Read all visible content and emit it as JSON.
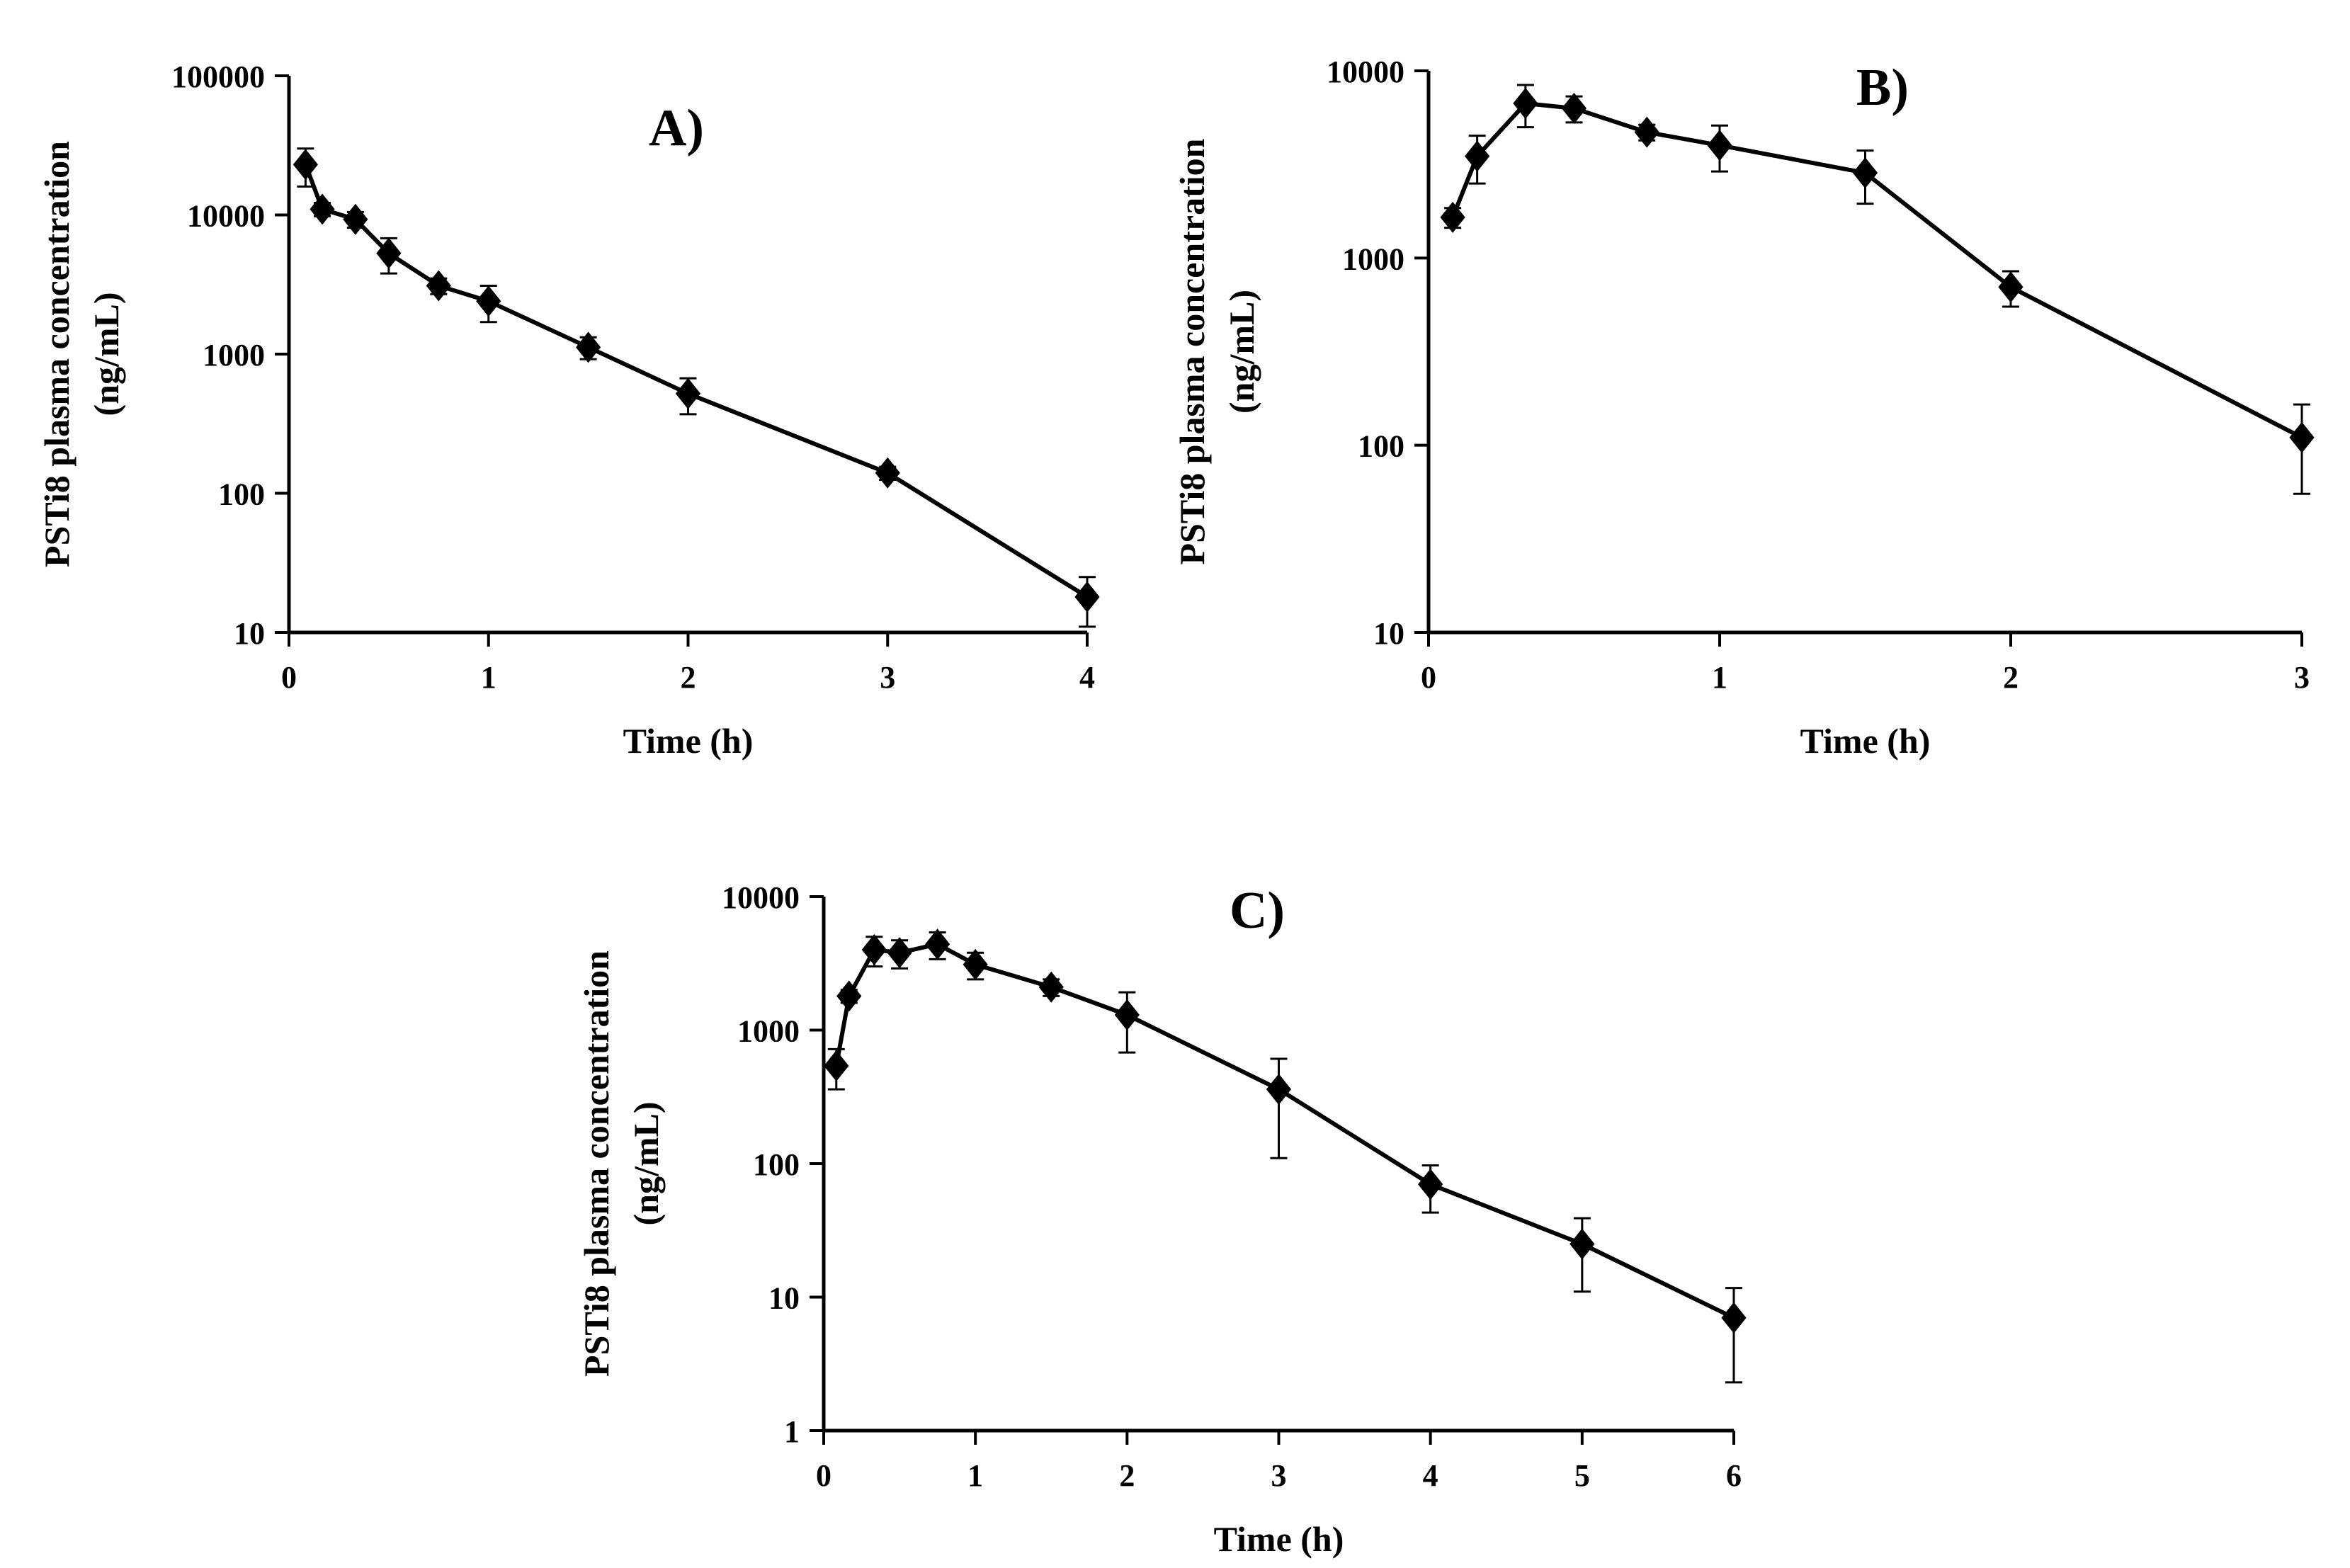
{
  "colors": {
    "line": "#000000",
    "background": "#ffffff"
  },
  "chart_data": [
    {
      "panel": "A",
      "type": "line",
      "title": "A)",
      "xlabel": "Time (h)",
      "ylabel": [
        "PSTi8 plasma concentration",
        "(ng/mL)"
      ],
      "yscale": "log",
      "xlim": [
        0,
        4
      ],
      "ylim": [
        10,
        100000
      ],
      "x_ticks": [
        0,
        1,
        2,
        3,
        4
      ],
      "y_ticks": [
        10,
        100,
        1000,
        10000,
        100000
      ],
      "marker": "diamond",
      "series": [
        {
          "name": "PSTi8",
          "x": [
            0.083,
            0.167,
            0.333,
            0.5,
            0.75,
            1,
            1.5,
            2,
            3,
            4
          ],
          "y": [
            23000,
            11000,
            9300,
            5300,
            3100,
            2400,
            1120,
            520,
            140,
            18
          ],
          "err": [
            7000,
            1200,
            1200,
            1500,
            400,
            700,
            200,
            150,
            15,
            7
          ]
        }
      ]
    },
    {
      "panel": "B",
      "type": "line",
      "title": "B)",
      "xlabel": "Time (h)",
      "ylabel": [
        "PSTi8 plasma concentration",
        "(ng/mL)"
      ],
      "yscale": "log",
      "xlim": [
        0,
        3
      ],
      "ylim": [
        10,
        10000
      ],
      "x_ticks": [
        0,
        1,
        2,
        3
      ],
      "y_ticks": [
        10,
        100,
        1000,
        10000
      ],
      "marker": "diamond",
      "series": [
        {
          "name": "PSTi8",
          "x": [
            0.083,
            0.167,
            0.333,
            0.5,
            0.75,
            1,
            1.5,
            2,
            3
          ],
          "y": [
            1650,
            3500,
            6700,
            6300,
            4700,
            4000,
            2850,
            700,
            110
          ],
          "err": [
            200,
            1000,
            1700,
            1000,
            450,
            1100,
            900,
            150,
            55
          ]
        }
      ]
    },
    {
      "panel": "C",
      "type": "line",
      "title": "C)",
      "xlabel": "Time (h)",
      "ylabel": [
        "PSTi8 plasma concentration",
        "(ng/mL)"
      ],
      "yscale": "log",
      "xlim": [
        0,
        6
      ],
      "ylim": [
        1,
        10000
      ],
      "x_ticks": [
        0,
        1,
        2,
        3,
        4,
        5,
        6
      ],
      "y_ticks": [
        1,
        10,
        100,
        1000,
        10000
      ],
      "marker": "diamond",
      "series": [
        {
          "name": "PSTi8",
          "x": [
            0.083,
            0.167,
            0.333,
            0.5,
            0.75,
            1,
            1.5,
            2,
            3,
            4,
            5,
            6
          ],
          "y": [
            540,
            1800,
            4000,
            3800,
            4400,
            3100,
            2100,
            1300,
            360,
            70,
            25,
            7
          ],
          "err": [
            180,
            200,
            1000,
            900,
            1000,
            700,
            300,
            620,
            250,
            27,
            14,
            4.7
          ]
        }
      ]
    }
  ]
}
